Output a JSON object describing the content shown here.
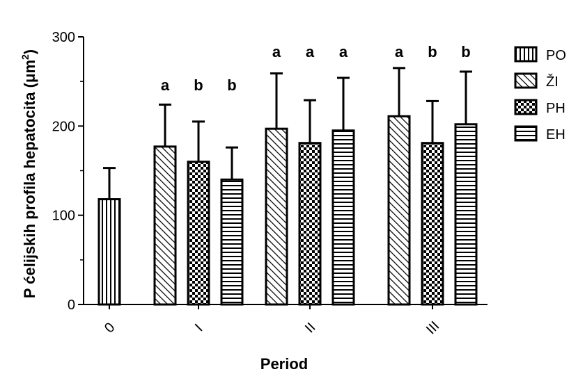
{
  "chart_data": {
    "type": "bar",
    "xlabel": "Period",
    "ylabel": "P ćelijskih profila hepatocita (μm²)",
    "ylabel_parts": {
      "main": "P ćelijskih profila hepatocita (μm",
      "sup": "2",
      "end": ")"
    },
    "ylim": [
      0,
      300
    ],
    "yticks": [
      "0",
      "100",
      "200",
      "300"
    ],
    "categories": [
      "0",
      "I",
      "II",
      "III"
    ],
    "legend_position": "right",
    "series": [
      {
        "name": "PO",
        "pattern": "vertical"
      },
      {
        "name": "ŽI",
        "pattern": "diagonal"
      },
      {
        "name": "PH",
        "pattern": "checker"
      },
      {
        "name": "EH",
        "pattern": "horizontal"
      }
    ],
    "groups": [
      {
        "category": "0",
        "bars": [
          {
            "series": "PO",
            "value": 118,
            "error": 35,
            "label": ""
          }
        ]
      },
      {
        "category": "I",
        "bars": [
          {
            "series": "ŽI",
            "value": 177,
            "error": 47,
            "label": "a"
          },
          {
            "series": "PH",
            "value": 160,
            "error": 45,
            "label": "b"
          },
          {
            "series": "EH",
            "value": 140,
            "error": 36,
            "label": "b"
          }
        ]
      },
      {
        "category": "II",
        "bars": [
          {
            "series": "ŽI",
            "value": 197,
            "error": 62,
            "label": "a"
          },
          {
            "series": "PH",
            "value": 181,
            "error": 48,
            "label": "a"
          },
          {
            "series": "EH",
            "value": 195,
            "error": 59,
            "label": "a"
          }
        ]
      },
      {
        "category": "III",
        "bars": [
          {
            "series": "ŽI",
            "value": 211,
            "error": 54,
            "label": "a"
          },
          {
            "series": "PH",
            "value": 181,
            "error": 47,
            "label": "b"
          },
          {
            "series": "EH",
            "value": 202,
            "error": 59,
            "label": "b"
          }
        ]
      }
    ]
  }
}
